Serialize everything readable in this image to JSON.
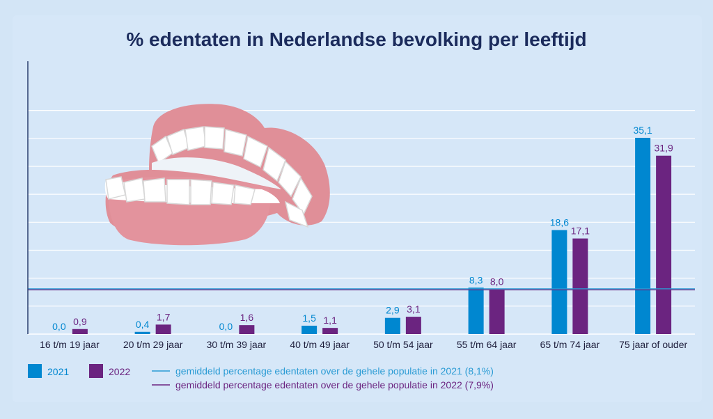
{
  "chart_data": {
    "type": "bar",
    "title": "% edentaten in Nederlandse bevolking per leeftijd",
    "categories": [
      "16 t/m 19 jaar",
      "20 t/m 29 jaar",
      "30 t/m 39 jaar",
      "40 t/m 49 jaar",
      "50 t/m 54 jaar",
      "55 t/m 64 jaar",
      "65 t/m 74 jaar",
      "75 jaar of ouder"
    ],
    "series": [
      {
        "name": "2021",
        "color": "#0087d0",
        "values": [
          0.0,
          0.4,
          0.0,
          1.5,
          2.9,
          8.3,
          18.6,
          35.1
        ],
        "labels": [
          "0,0",
          "0,4",
          "0,0",
          "1,5",
          "2,9",
          "8,3",
          "18,6",
          "35,1"
        ]
      },
      {
        "name": "2022",
        "color": "#6b2480",
        "values": [
          0.9,
          1.7,
          1.6,
          1.1,
          3.1,
          8.0,
          17.1,
          31.9
        ],
        "labels": [
          "0,9",
          "1,7",
          "1,6",
          "1,1",
          "3,1",
          "8,0",
          "17,1",
          "31,9"
        ]
      }
    ],
    "reference_lines": [
      {
        "value": 8.1,
        "color": "#2a9bd4",
        "label": "gemiddeld percentage edentaten over de gehele populatie in 2021 (8,1%)"
      },
      {
        "value": 7.9,
        "color": "#6b2480",
        "label": "gemiddeld percentage edentaten over de gehele populatie in 2022 (7,9%)"
      }
    ],
    "ylim": [
      0,
      40
    ],
    "grid": true,
    "xlabel": "",
    "ylabel": ""
  },
  "illustration": {
    "icon": "dentures-icon"
  }
}
